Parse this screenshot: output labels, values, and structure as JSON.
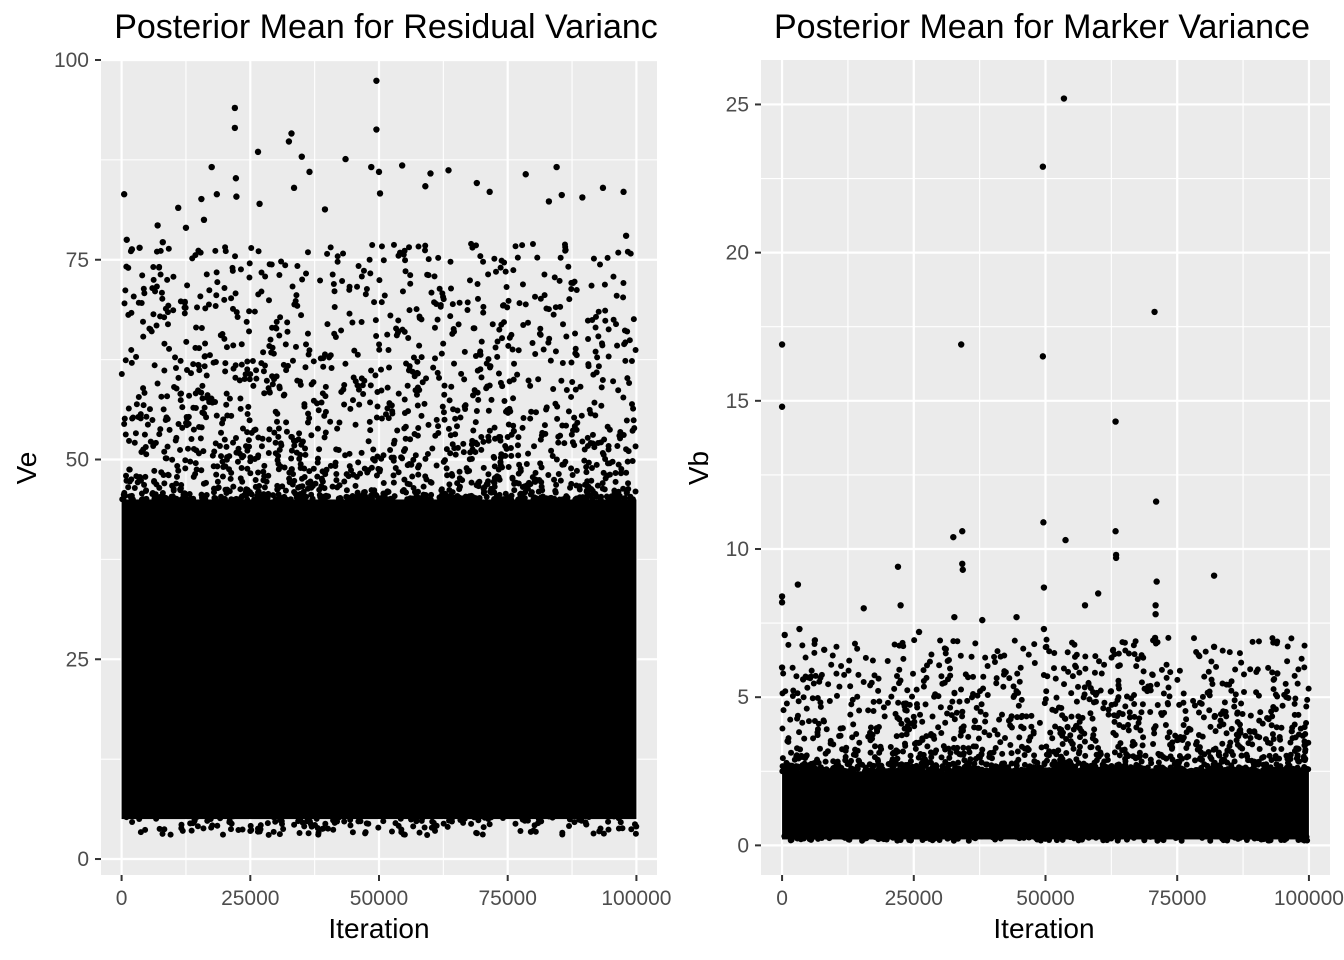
{
  "chart_data": [
    {
      "type": "scatter",
      "title": "Posterior Mean for Residual Varianc",
      "xlabel": "Iteration",
      "ylabel": "Ve",
      "xlim": [
        -4000,
        104000
      ],
      "ylim": [
        -2,
        100
      ],
      "x_ticks": [
        0,
        25000,
        50000,
        75000,
        100000
      ],
      "x_tick_labels": [
        "0",
        "25000",
        "50000",
        "75000",
        "100000"
      ],
      "y_ticks": [
        0,
        25,
        50,
        75,
        100
      ],
      "y_tick_labels": [
        "0",
        "25",
        "50",
        "75",
        "100"
      ],
      "grid": true,
      "series": [
        {
          "points_per_series": 100000,
          "bulk_range": [
            5,
            45
          ],
          "outliers": [
            {
              "x": 500,
              "y": 83.2
            },
            {
              "x": 1000,
              "y": 77.5
            },
            {
              "x": 2000,
              "y": 76.3
            },
            {
              "x": 3500,
              "y": 76.5
            },
            {
              "x": 7000,
              "y": 79.3
            },
            {
              "x": 8000,
              "y": 77.2
            },
            {
              "x": 11000,
              "y": 81.5
            },
            {
              "x": 12500,
              "y": 79.0
            },
            {
              "x": 15500,
              "y": 82.6
            },
            {
              "x": 16000,
              "y": 80.0
            },
            {
              "x": 17500,
              "y": 86.6
            },
            {
              "x": 18500,
              "y": 83.2
            },
            {
              "x": 22000,
              "y": 94.0
            },
            {
              "x": 22000,
              "y": 91.5
            },
            {
              "x": 22200,
              "y": 85.2
            },
            {
              "x": 22300,
              "y": 82.9
            },
            {
              "x": 26500,
              "y": 88.5
            },
            {
              "x": 26800,
              "y": 82.0
            },
            {
              "x": 32500,
              "y": 89.8
            },
            {
              "x": 33000,
              "y": 90.8
            },
            {
              "x": 33500,
              "y": 84.0
            },
            {
              "x": 35000,
              "y": 87.9
            },
            {
              "x": 36500,
              "y": 86.0
            },
            {
              "x": 39500,
              "y": 81.3
            },
            {
              "x": 43500,
              "y": 87.6
            },
            {
              "x": 48500,
              "y": 86.6
            },
            {
              "x": 49500,
              "y": 97.4
            },
            {
              "x": 49500,
              "y": 91.3
            },
            {
              "x": 50000,
              "y": 86.0
            },
            {
              "x": 50200,
              "y": 83.3
            },
            {
              "x": 54500,
              "y": 86.8
            },
            {
              "x": 59000,
              "y": 84.2
            },
            {
              "x": 60000,
              "y": 85.8
            },
            {
              "x": 63500,
              "y": 86.2
            },
            {
              "x": 69000,
              "y": 84.6
            },
            {
              "x": 71500,
              "y": 83.5
            },
            {
              "x": 78500,
              "y": 85.7
            },
            {
              "x": 83000,
              "y": 82.3
            },
            {
              "x": 84500,
              "y": 86.6
            },
            {
              "x": 85500,
              "y": 83.1
            },
            {
              "x": 89500,
              "y": 82.8
            },
            {
              "x": 93500,
              "y": 84.0
            },
            {
              "x": 97500,
              "y": 83.5
            },
            {
              "x": 98000,
              "y": 78.0
            }
          ]
        }
      ]
    },
    {
      "type": "scatter",
      "title": "Posterior Mean for Marker Variance",
      "xlabel": "Iteration",
      "ylabel": "Vb",
      "xlim": [
        -4000,
        104000
      ],
      "ylim": [
        -1,
        26.5
      ],
      "x_ticks": [
        0,
        25000,
        50000,
        75000,
        100000
      ],
      "x_tick_labels": [
        "0",
        "25000",
        "50000",
        "75000",
        "100000"
      ],
      "y_ticks": [
        0,
        5,
        10,
        15,
        20,
        25
      ],
      "y_tick_labels": [
        "0",
        "5",
        "10",
        "15",
        "20",
        "25"
      ],
      "grid": true,
      "series": [
        {
          "points_per_series": 100000,
          "bulk_range": [
            0.2,
            2.5
          ],
          "outliers": [
            {
              "x": 0,
              "y": 16.9
            },
            {
              "x": 0,
              "y": 14.8
            },
            {
              "x": 0,
              "y": 8.4
            },
            {
              "x": 0,
              "y": 8.2
            },
            {
              "x": 0,
              "y": 6.0
            },
            {
              "x": 500,
              "y": 7.1
            },
            {
              "x": 3000,
              "y": 8.8
            },
            {
              "x": 3300,
              "y": 7.3
            },
            {
              "x": 4000,
              "y": 5.6
            },
            {
              "x": 8000,
              "y": 6.6
            },
            {
              "x": 15500,
              "y": 8.0
            },
            {
              "x": 22000,
              "y": 9.4
            },
            {
              "x": 22500,
              "y": 8.1
            },
            {
              "x": 26000,
              "y": 7.2
            },
            {
              "x": 32500,
              "y": 10.4
            },
            {
              "x": 32700,
              "y": 7.7
            },
            {
              "x": 34000,
              "y": 16.9
            },
            {
              "x": 34200,
              "y": 10.6
            },
            {
              "x": 34200,
              "y": 9.5
            },
            {
              "x": 34300,
              "y": 9.3
            },
            {
              "x": 38000,
              "y": 7.6
            },
            {
              "x": 44500,
              "y": 7.7
            },
            {
              "x": 49500,
              "y": 22.9
            },
            {
              "x": 49500,
              "y": 16.5
            },
            {
              "x": 49600,
              "y": 10.9
            },
            {
              "x": 49700,
              "y": 8.7
            },
            {
              "x": 49700,
              "y": 7.3
            },
            {
              "x": 53500,
              "y": 25.2
            },
            {
              "x": 53800,
              "y": 10.3
            },
            {
              "x": 57500,
              "y": 8.1
            },
            {
              "x": 60000,
              "y": 8.5
            },
            {
              "x": 63300,
              "y": 14.3
            },
            {
              "x": 63300,
              "y": 10.6
            },
            {
              "x": 63400,
              "y": 9.8
            },
            {
              "x": 63400,
              "y": 9.7
            },
            {
              "x": 70700,
              "y": 18.0
            },
            {
              "x": 71000,
              "y": 11.6
            },
            {
              "x": 71100,
              "y": 8.9
            },
            {
              "x": 70900,
              "y": 8.1
            },
            {
              "x": 70900,
              "y": 7.8
            },
            {
              "x": 70800,
              "y": 7.0
            },
            {
              "x": 82000,
              "y": 9.1
            },
            {
              "x": 82000,
              "y": 6.7
            },
            {
              "x": 94000,
              "y": 5.8
            }
          ]
        }
      ]
    }
  ]
}
